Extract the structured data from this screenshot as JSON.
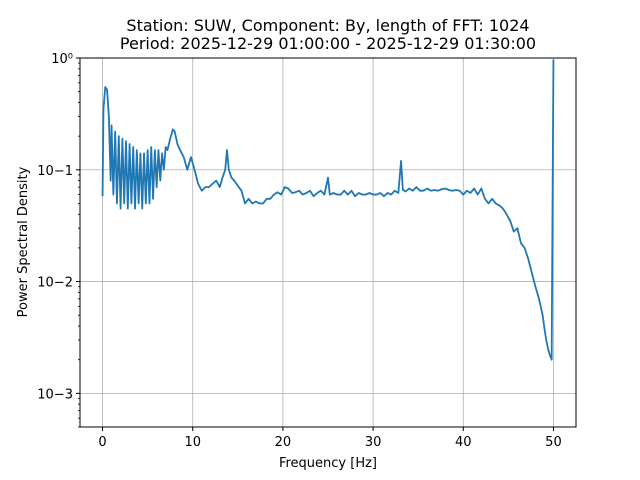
{
  "chart_data": {
    "type": "line",
    "title_line1": "Station: SUW, Component: By, length of FFT: 1024",
    "title_line2": "Period: 2025-12-29 01:00:00 - 2025-12-29 01:30:00",
    "xlabel": "Frequency [Hz]",
    "ylabel": "Power Spectral Density",
    "xlim": [
      -2.5,
      52.5
    ],
    "ylim": [
      0.0005,
      1.0
    ],
    "yscale": "log",
    "grid": true,
    "xticks": [
      0,
      10,
      20,
      30,
      40,
      50
    ],
    "xtick_labels": [
      "0",
      "10",
      "20",
      "30",
      "40",
      "50"
    ],
    "yticks": [
      0.001,
      0.01,
      0.1,
      1
    ],
    "ytick_labels": [
      "10−3",
      "10−2",
      "10−1",
      "10⁰"
    ],
    "series": [
      {
        "color": "#1f77b4",
        "x": [
          0,
          0.1,
          0.3,
          0.5,
          0.7,
          0.9,
          1.0,
          1.2,
          1.4,
          1.6,
          1.8,
          2.0,
          2.2,
          2.4,
          2.6,
          2.8,
          3.0,
          3.2,
          3.4,
          3.6,
          3.8,
          4.0,
          4.2,
          4.4,
          4.6,
          4.8,
          5.0,
          5.2,
          5.4,
          5.6,
          5.8,
          6.0,
          6.2,
          6.4,
          6.6,
          6.8,
          7.0,
          7.2,
          7.5,
          7.8,
          8.0,
          8.3,
          8.6,
          9.0,
          9.4,
          9.8,
          10.2,
          10.6,
          11.0,
          11.4,
          11.8,
          12.2,
          12.6,
          13.0,
          13.3,
          13.6,
          13.8,
          14.0,
          14.3,
          14.6,
          15.0,
          15.4,
          15.8,
          16.2,
          16.6,
          17.0,
          17.4,
          17.8,
          18.2,
          18.6,
          19.0,
          19.4,
          19.8,
          20.2,
          20.6,
          21.0,
          21.4,
          21.8,
          22.2,
          22.6,
          23.0,
          23.4,
          23.8,
          24.2,
          24.6,
          25.0,
          25.2,
          25.6,
          26.0,
          26.4,
          26.8,
          27.2,
          27.6,
          28.0,
          28.4,
          28.8,
          29.2,
          29.6,
          30.0,
          30.4,
          30.8,
          31.2,
          31.6,
          32.0,
          32.4,
          32.8,
          33.1,
          33.3,
          33.6,
          34.0,
          34.4,
          34.8,
          35.2,
          35.6,
          36.0,
          36.4,
          36.8,
          37.2,
          37.6,
          38.0,
          38.4,
          38.8,
          39.2,
          39.6,
          40.0,
          40.4,
          40.8,
          41.2,
          41.6,
          42.0,
          42.4,
          42.8,
          43.2,
          43.6,
          44.0,
          44.4,
          44.8,
          45.2,
          45.6,
          46.0,
          46.4,
          46.8,
          47.2,
          47.6,
          48.0,
          48.4,
          48.8,
          49.0,
          49.2,
          49.4,
          49.6,
          49.7,
          49.8,
          49.9,
          50.0
        ],
        "y": [
          0.058,
          0.35,
          0.55,
          0.52,
          0.3,
          0.08,
          0.25,
          0.06,
          0.22,
          0.05,
          0.2,
          0.045,
          0.19,
          0.05,
          0.18,
          0.045,
          0.17,
          0.05,
          0.16,
          0.045,
          0.15,
          0.05,
          0.14,
          0.045,
          0.14,
          0.05,
          0.15,
          0.05,
          0.16,
          0.055,
          0.15,
          0.07,
          0.15,
          0.08,
          0.14,
          0.1,
          0.16,
          0.15,
          0.19,
          0.23,
          0.22,
          0.17,
          0.15,
          0.13,
          0.1,
          0.13,
          0.1,
          0.075,
          0.065,
          0.07,
          0.07,
          0.075,
          0.08,
          0.07,
          0.085,
          0.1,
          0.15,
          0.1,
          0.085,
          0.08,
          0.072,
          0.065,
          0.05,
          0.055,
          0.05,
          0.052,
          0.05,
          0.05,
          0.055,
          0.055,
          0.06,
          0.063,
          0.06,
          0.07,
          0.068,
          0.062,
          0.063,
          0.065,
          0.06,
          0.062,
          0.065,
          0.058,
          0.062,
          0.065,
          0.06,
          0.085,
          0.06,
          0.062,
          0.06,
          0.06,
          0.065,
          0.06,
          0.065,
          0.058,
          0.062,
          0.06,
          0.06,
          0.062,
          0.06,
          0.06,
          0.062,
          0.058,
          0.062,
          0.06,
          0.065,
          0.062,
          0.12,
          0.066,
          0.064,
          0.068,
          0.065,
          0.07,
          0.065,
          0.065,
          0.068,
          0.065,
          0.066,
          0.065,
          0.067,
          0.068,
          0.066,
          0.065,
          0.066,
          0.065,
          0.06,
          0.065,
          0.062,
          0.068,
          0.06,
          0.068,
          0.055,
          0.05,
          0.055,
          0.05,
          0.048,
          0.045,
          0.04,
          0.035,
          0.028,
          0.03,
          0.022,
          0.02,
          0.016,
          0.012,
          0.009,
          0.007,
          0.005,
          0.0038,
          0.003,
          0.0025,
          0.0022,
          0.0021,
          0.002,
          0.05,
          0.97
        ]
      }
    ]
  }
}
